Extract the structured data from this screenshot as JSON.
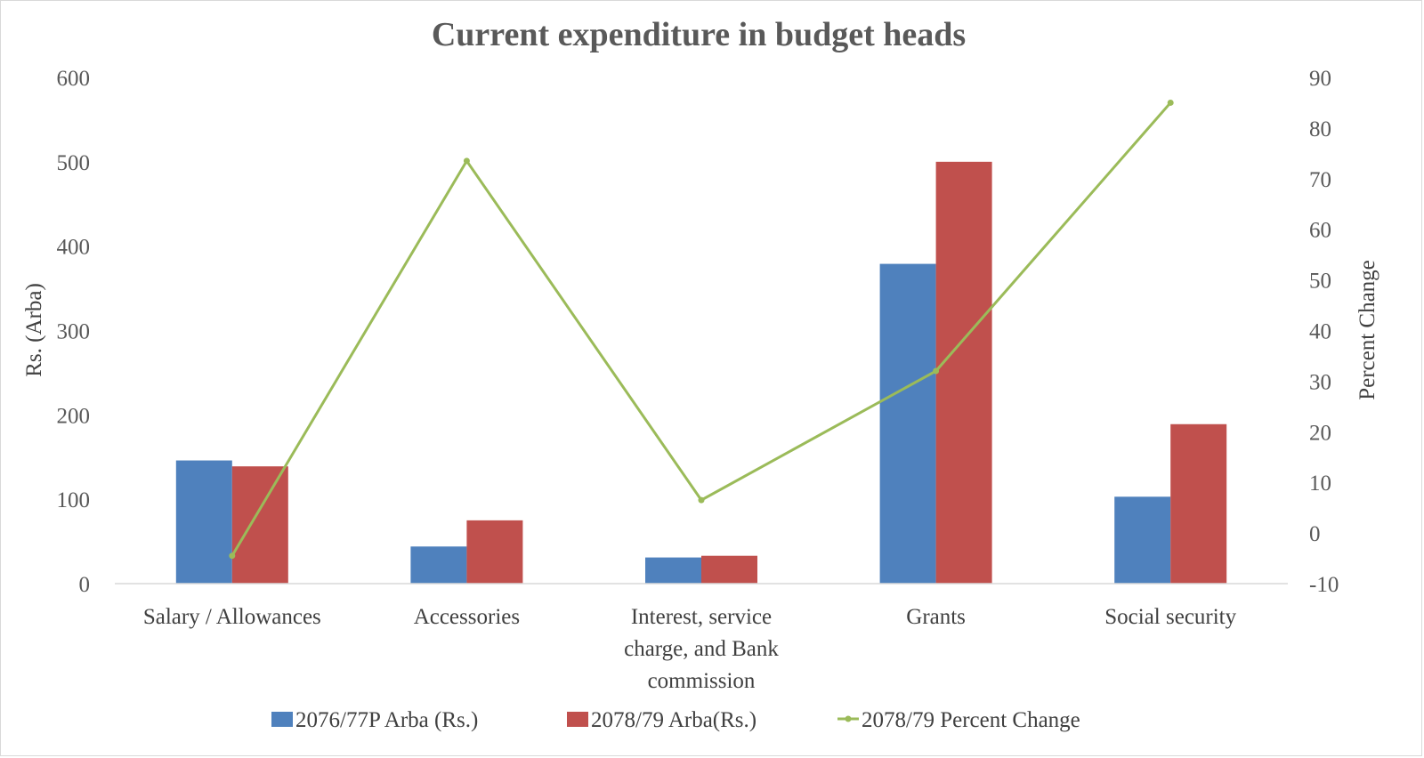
{
  "chart_data": {
    "type": "bar",
    "title": "Current expenditure in budget heads",
    "ylabel": "Rs. (Arba)",
    "y2label": "Percent Change",
    "ylim": [
      0,
      600
    ],
    "yticks": [
      0,
      100,
      200,
      300,
      400,
      500,
      600
    ],
    "y2lim": [
      -10,
      90
    ],
    "y2ticks": [
      -10,
      0,
      10,
      20,
      30,
      40,
      50,
      60,
      70,
      80,
      90
    ],
    "grid": false,
    "legend_position": "bottom",
    "categories": [
      [
        "Salary / Allowances"
      ],
      [
        "Accessories"
      ],
      [
        "Interest, service",
        "charge, and Bank",
        "commission"
      ],
      [
        "Grants"
      ],
      [
        "Social security"
      ]
    ],
    "series": [
      {
        "name": "2076/77P Arba (Rs.)",
        "type": "bar",
        "axis": "left",
        "color": "#4F81BD",
        "values": [
          146,
          44,
          31,
          379,
          103
        ]
      },
      {
        "name": "2078/79 Arba(Rs.)",
        "type": "bar",
        "axis": "left",
        "color": "#C0504D",
        "values": [
          139,
          75,
          33,
          500,
          189
        ]
      },
      {
        "name": "2078/79 Percent Change",
        "type": "line",
        "axis": "right",
        "color": "#9BBB59",
        "values": [
          -4.5,
          73.5,
          6.5,
          32,
          85
        ]
      }
    ]
  }
}
